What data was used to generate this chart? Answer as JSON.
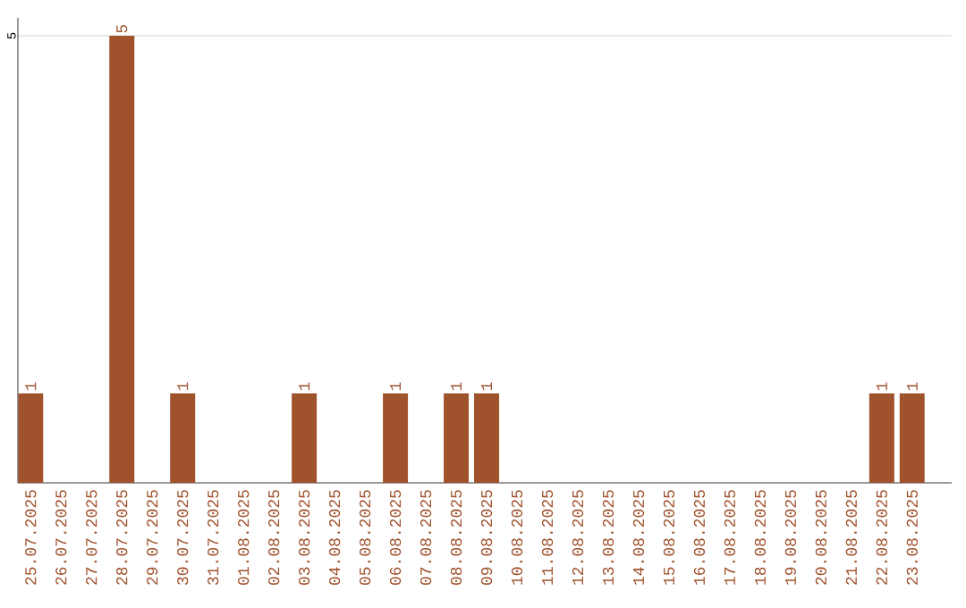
{
  "chart_data": {
    "type": "bar",
    "categories": [
      "25.07.2025",
      "26.07.2025",
      "27.07.2025",
      "28.07.2025",
      "29.07.2025",
      "30.07.2025",
      "31.07.2025",
      "01.08.2025",
      "02.08.2025",
      "03.08.2025",
      "04.08.2025",
      "05.08.2025",
      "06.08.2025",
      "07.08.2025",
      "08.08.2025",
      "09.08.2025",
      "10.08.2025",
      "11.08.2025",
      "12.08.2025",
      "13.08.2025",
      "14.08.2025",
      "15.08.2025",
      "16.08.2025",
      "17.08.2025",
      "18.08.2025",
      "19.08.2025",
      "20.08.2025",
      "21.08.2025",
      "22.08.2025",
      "23.08.2025"
    ],
    "values": [
      1,
      0,
      0,
      5,
      0,
      1,
      0,
      0,
      0,
      1,
      0,
      0,
      1,
      0,
      1,
      1,
      0,
      0,
      0,
      0,
      0,
      0,
      0,
      0,
      0,
      0,
      0,
      0,
      1,
      1
    ],
    "value_labels": [
      "1",
      null,
      null,
      "5",
      null,
      "1",
      null,
      null,
      null,
      "1",
      null,
      null,
      "1",
      null,
      "1",
      "1",
      null,
      null,
      null,
      null,
      null,
      null,
      null,
      null,
      null,
      null,
      null,
      null,
      "1",
      "1"
    ],
    "color": "#a0522d",
    "ylim": [
      0,
      5.2
    ],
    "yticks": [
      5
    ],
    "grid": "y"
  }
}
